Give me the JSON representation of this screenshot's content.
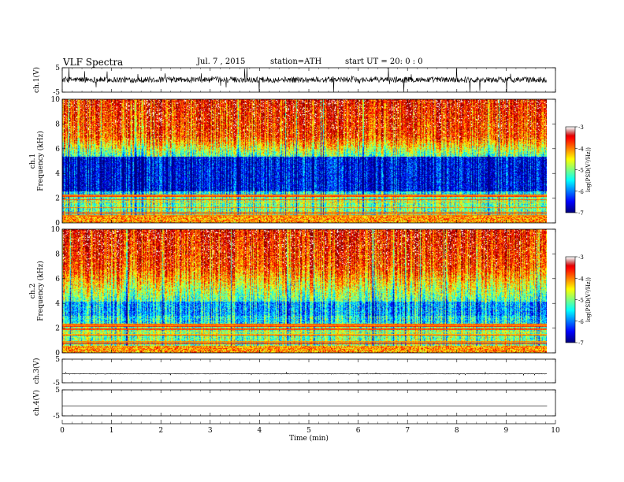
{
  "header": {
    "title": "VLF  Spectra",
    "date": "Jul.  7  , 2015",
    "station": "station=ATH",
    "start": "start  UT  =   20: 0  : 0"
  },
  "chart_data": [
    {
      "type": "line",
      "panel": "ch1-waveform",
      "ylabel": "ch.1(V)",
      "yticks": [
        "5",
        "-5"
      ],
      "ylim": [
        -5,
        5
      ],
      "xlim": [
        0,
        10
      ],
      "x_end_data": 9.83,
      "baseline": 0.1,
      "noise_amplitude": 1.2,
      "color": "#000000"
    },
    {
      "type": "heatmap",
      "panel": "ch1-spectrogram",
      "ylabel": "ch.1\nFrequency  (kHz)",
      "yticks": [
        "0",
        "2",
        "4",
        "6",
        "8",
        "10"
      ],
      "ylim": [
        0,
        10
      ],
      "xlim": [
        0,
        10
      ],
      "x_end_data": 9.83,
      "colorbar": {
        "label": "log(PSD(V²/Hz))",
        "ticks": [
          "-3",
          "-4",
          "-5",
          "-6",
          "-7"
        ],
        "range": [
          -7,
          -3
        ]
      },
      "dark_band_khz": [
        2.6,
        5.4
      ]
    },
    {
      "type": "heatmap",
      "panel": "ch2-spectrogram",
      "ylabel": "ch.2\nFrequency  (kHz)",
      "yticks": [
        "0",
        "2",
        "4",
        "6",
        "8",
        "10"
      ],
      "ylim": [
        0,
        10
      ],
      "xlim": [
        0,
        10
      ],
      "x_end_data": 9.83,
      "colorbar": {
        "label": "log(PSD(V²/Hz))",
        "ticks": [
          "-3",
          "-4",
          "-5",
          "-6",
          "-7"
        ],
        "range": [
          -7,
          -3
        ]
      },
      "dark_band_khz": [
        3.0,
        4.2
      ]
    },
    {
      "type": "line",
      "panel": "ch3-waveform",
      "ylabel": "ch.3(V)",
      "yticks": [
        "5",
        "-5"
      ],
      "ylim": [
        -5,
        5
      ],
      "xlim": [
        0,
        10
      ],
      "x_end_data": 9.83,
      "baseline": -1.2,
      "noise_amplitude": 0.1
    },
    {
      "type": "line",
      "panel": "ch4-waveform",
      "ylabel": "ch.4(V)",
      "yticks": [
        "5",
        "-5"
      ],
      "ylim": [
        -5,
        5
      ],
      "xlim": [
        0,
        10
      ],
      "x_end_data": 9.83,
      "baseline": -1.2,
      "noise_amplitude": 0.0
    },
    {
      "type": "axis",
      "panel": "time-axis",
      "xlabel": "Time  (min)",
      "xticks": [
        "0",
        "1",
        "2",
        "3",
        "4",
        "5",
        "6",
        "7",
        "8",
        "9",
        "10"
      ],
      "xlim": [
        0,
        10
      ]
    }
  ]
}
